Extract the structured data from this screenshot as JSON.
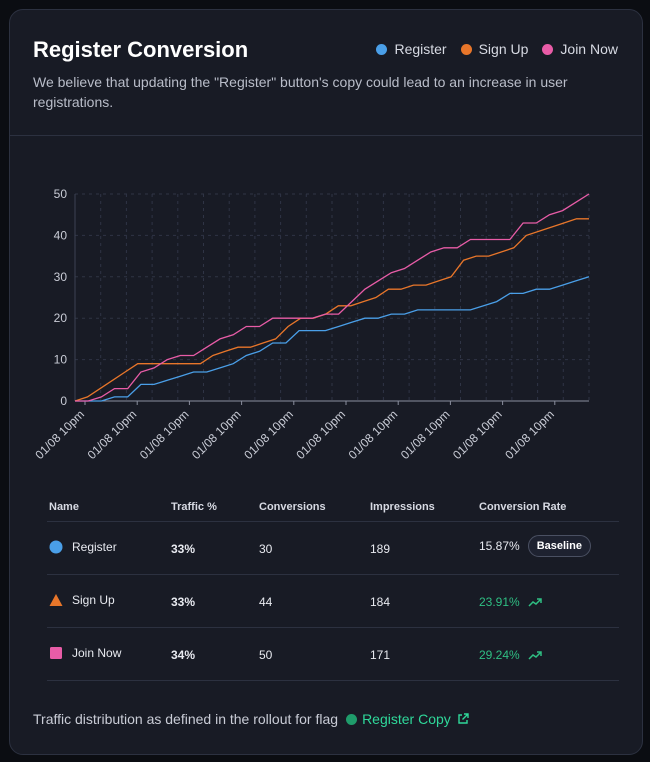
{
  "header": {
    "title": "Register Conversion",
    "description": "We believe that updating the \"Register\" button's copy could lead to an increase in user registrations."
  },
  "legend": [
    {
      "label": "Register",
      "color": "#4a9fe8",
      "icon": "circle"
    },
    {
      "label": "Sign Up",
      "color": "#e8762a",
      "icon": "circle"
    },
    {
      "label": "Join Now",
      "color": "#e85ca7",
      "icon": "circle"
    }
  ],
  "chart_data": {
    "type": "line",
    "ylim": [
      0,
      50
    ],
    "y_ticks": [
      "0",
      "10",
      "20",
      "30",
      "40",
      "50"
    ],
    "x_tick_labels": [
      "01/08 10pm",
      "01/08 10pm",
      "01/08 10pm",
      "01/08 10pm",
      "01/08 10pm",
      "01/08 10pm",
      "01/08 10pm",
      "01/08 10pm",
      "01/08 10pm",
      "01/08 10pm"
    ],
    "grid": true,
    "series": [
      {
        "name": "Register",
        "color": "#4a9fe8",
        "values": [
          0,
          0,
          0,
          1,
          1,
          4,
          4,
          5,
          6,
          7,
          7,
          8,
          9,
          11,
          12,
          14,
          14,
          17,
          17,
          17,
          18,
          19,
          20,
          20,
          21,
          21,
          22,
          22,
          22,
          22,
          22,
          23,
          24,
          26,
          26,
          27,
          27,
          28,
          29,
          30
        ]
      },
      {
        "name": "Sign Up",
        "color": "#e8762a",
        "values": [
          0,
          1,
          3,
          5,
          7,
          9,
          9,
          9,
          9,
          9,
          9,
          11,
          12,
          13,
          13,
          14,
          15,
          18,
          20,
          20,
          21,
          23,
          23,
          24,
          25,
          27,
          27,
          28,
          28,
          29,
          30,
          34,
          35,
          35,
          36,
          37,
          40,
          41,
          42,
          43,
          44,
          44
        ]
      },
      {
        "name": "Join Now",
        "color": "#e85ca7",
        "values": [
          0,
          0,
          1,
          3,
          3,
          7,
          8,
          10,
          11,
          11,
          13,
          15,
          16,
          18,
          18,
          20,
          20,
          20,
          20,
          21,
          21,
          24,
          27,
          29,
          31,
          32,
          34,
          36,
          37,
          37,
          39,
          39,
          39,
          39,
          43,
          43,
          45,
          46,
          48,
          50
        ]
      }
    ]
  },
  "table": {
    "headers": {
      "name": "Name",
      "traffic": "Traffic %",
      "conversions": "Conversions",
      "impressions": "Impressions",
      "rate": "Conversion Rate"
    },
    "rows": [
      {
        "name": "Register",
        "icon": "circle",
        "color": "#4a9fe8",
        "traffic": "33%",
        "conversions": "30",
        "impressions": "189",
        "rate": "15.87%",
        "badge": "Baseline",
        "trend": ""
      },
      {
        "name": "Sign Up",
        "icon": "triangle",
        "color": "#e8762a",
        "traffic": "33%",
        "conversions": "44",
        "impressions": "184",
        "rate": "23.91%",
        "badge": "",
        "trend": "up"
      },
      {
        "name": "Join Now",
        "icon": "square",
        "color": "#e85ca7",
        "traffic": "34%",
        "conversions": "50",
        "impressions": "171",
        "rate": "29.24%",
        "badge": "",
        "trend": "up"
      }
    ]
  },
  "footer": {
    "text": "Traffic distribution as defined in the rollout for flag",
    "flag_name": "Register Copy"
  }
}
